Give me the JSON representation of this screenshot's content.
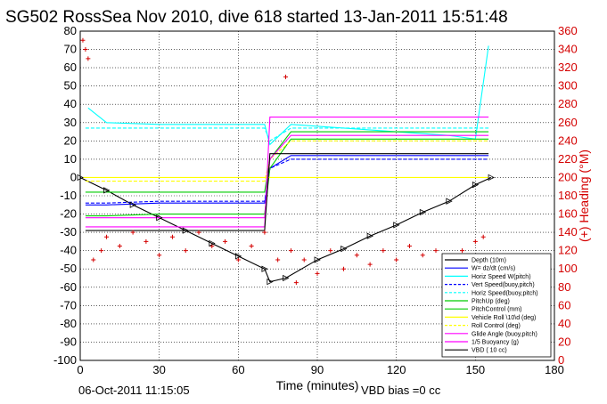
{
  "chart_data": {
    "type": "line",
    "title": "SG502 RossSea Nov 2010, dive 618 started 13-Jan-2011 15:51:48",
    "xlabel": "Time (minutes)",
    "ylabel_right": "(+) Heading (°M)",
    "xlim": [
      0,
      180
    ],
    "ylim": [
      -100,
      80
    ],
    "ylim_right": [
      0,
      360
    ],
    "x_ticks": [
      "0",
      "30",
      "60",
      "90",
      "120",
      "150",
      "180"
    ],
    "y_ticks": [
      "80",
      "70",
      "60",
      "50",
      "40",
      "30",
      "20",
      "10",
      "0",
      "-10",
      "-20",
      "-30",
      "-40",
      "-50",
      "-60",
      "-70",
      "-80",
      "-90",
      "-100"
    ],
    "y_ticks_right": [
      "360",
      "340",
      "320",
      "300",
      "280",
      "260",
      "240",
      "220",
      "200",
      "180",
      "160",
      "140",
      "120",
      "100",
      "80",
      "60",
      "40",
      "20",
      "0"
    ],
    "grid": true,
    "legend_position": "bottom-right",
    "series": [
      {
        "name": "Depth (10m)",
        "color": "#000000",
        "x": [
          0,
          10,
          20,
          30,
          40,
          50,
          60,
          70,
          72,
          78,
          90,
          100,
          110,
          120,
          130,
          140,
          150,
          156
        ],
        "values": [
          0,
          -7,
          -15,
          -22,
          -29,
          -36,
          -43,
          -50,
          -57,
          -55,
          -45,
          -39,
          -32,
          -26,
          -19,
          -13,
          -4,
          0
        ]
      },
      {
        "name": "W= dz/dt (cm/s)",
        "color": "#0000ff",
        "x": [
          2,
          10,
          30,
          50,
          70,
          72,
          80,
          90,
          110,
          130,
          150,
          155
        ],
        "values": [
          -15,
          -15,
          -14,
          -14,
          -14,
          5,
          12,
          12,
          12,
          12,
          12,
          12
        ]
      },
      {
        "name": "Horiz Speed W(pitch)",
        "color": "#00ffff",
        "x": [
          3,
          10,
          30,
          50,
          70,
          72,
          80,
          100,
          120,
          140,
          150,
          155
        ],
        "values": [
          38,
          30,
          29,
          29,
          29,
          18,
          29,
          27,
          25,
          23,
          21,
          72
        ]
      },
      {
        "name": "Vert Speed(buoy,pitch)",
        "color": "#0000ff",
        "x": [
          2,
          10,
          30,
          50,
          70,
          72,
          80,
          100,
          120,
          140,
          155
        ],
        "values": [
          -14,
          -14,
          -13,
          -13,
          -13,
          5,
          10,
          10,
          10,
          10,
          10
        ]
      },
      {
        "name": "Horiz Speed(buoy,pitch)",
        "color": "#00ffff",
        "x": [
          2,
          10,
          30,
          50,
          70,
          72,
          80,
          100,
          120,
          140,
          155
        ],
        "values": [
          27,
          27,
          27,
          27,
          27,
          20,
          27,
          27,
          27,
          27,
          27
        ]
      },
      {
        "name": "PitchUp (deg)",
        "color": "#00cc00",
        "x": [
          2,
          10,
          30,
          50,
          70,
          72,
          80,
          100,
          120,
          140,
          155
        ],
        "values": [
          -21,
          -21,
          -20,
          -20,
          -20,
          5,
          21,
          21,
          21,
          21,
          21
        ]
      },
      {
        "name": "PitchControl (mm)",
        "color": "#00cc00",
        "x": [
          2,
          10,
          30,
          50,
          70,
          72,
          80,
          100,
          120,
          140,
          155
        ],
        "values": [
          -8,
          -8,
          -8,
          -8,
          -8,
          10,
          25,
          25,
          25,
          25,
          25
        ]
      },
      {
        "name": "Vehicle Roll \\10\\d (deg)",
        "color": "#ffff00",
        "x": [
          1,
          10,
          30,
          50,
          70,
          72,
          80,
          100,
          120,
          140,
          155
        ],
        "values": [
          0,
          0,
          0,
          0,
          0,
          0,
          0,
          0,
          0,
          0,
          0
        ]
      },
      {
        "name": "Roll Control (deg)",
        "color": "#ffff00",
        "x": [
          2,
          10,
          30,
          50,
          70,
          72,
          80,
          100,
          120,
          140,
          155
        ],
        "values": [
          -2,
          -2,
          -2,
          -2,
          -2,
          10,
          20,
          20,
          20,
          20,
          20
        ]
      },
      {
        "name": "Glide Angle (buoy,pitch)",
        "color": "#ff00ff",
        "x": [
          2,
          10,
          30,
          50,
          70,
          72,
          80,
          100,
          120,
          140,
          155
        ],
        "values": [
          -22,
          -22,
          -22,
          -22,
          -22,
          10,
          23,
          23,
          23,
          23,
          23
        ]
      },
      {
        "name": "1/5 Buoyancy (g)",
        "color": "#ff00ff",
        "x": [
          2,
          10,
          30,
          50,
          70,
          72,
          75,
          100,
          120,
          140,
          155
        ],
        "values": [
          -27,
          -27,
          -27,
          -27,
          -27,
          33,
          33,
          33,
          33,
          33,
          33
        ]
      },
      {
        "name": "VBD ( 10 cc)",
        "color": "#000000",
        "x": [
          2,
          10,
          30,
          50,
          70,
          72,
          80,
          100,
          120,
          140,
          155
        ],
        "values": [
          -29,
          -29,
          -29,
          -29,
          -29,
          13,
          13,
          13,
          13,
          13,
          13
        ]
      }
    ],
    "heading_series": {
      "color": "#d40000",
      "x": [
        1,
        2,
        3,
        5,
        8,
        10,
        15,
        20,
        25,
        30,
        35,
        40,
        45,
        50,
        55,
        60,
        65,
        70,
        75,
        78,
        80,
        82,
        85,
        90,
        95,
        100,
        105,
        110,
        115,
        120,
        125,
        130,
        135,
        140,
        145,
        150,
        153
      ],
      "values": [
        350,
        340,
        330,
        110,
        120,
        135,
        125,
        140,
        130,
        115,
        135,
        120,
        140,
        125,
        130,
        110,
        125,
        140,
        110,
        310,
        120,
        85,
        110,
        95,
        120,
        100,
        115,
        105,
        120,
        110,
        125,
        115,
        120,
        105,
        120,
        130,
        135
      ]
    }
  },
  "footer": {
    "timestamp": "06-Oct-2011 11:15:05",
    "vbd_bias": "VBD bias =0 cc"
  }
}
